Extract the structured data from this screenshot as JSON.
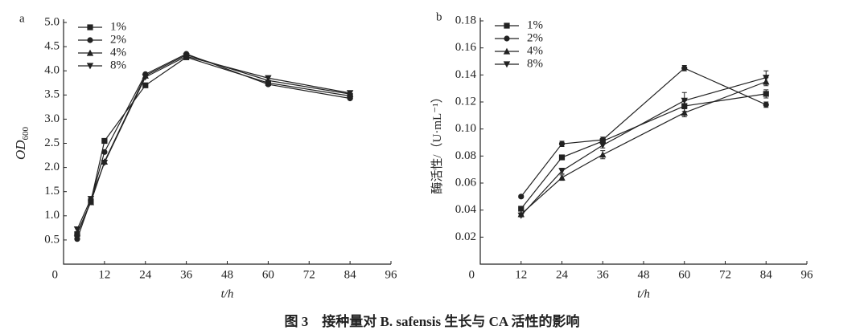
{
  "figure_caption": "图 3　接种量对 B. safensis 生长与 CA 活性的影响",
  "chart_data": [
    {
      "type": "line",
      "panel_label": "a",
      "xlabel": "t/h",
      "ylabel": "OD",
      "ylabel_subscript": "600",
      "x": [
        4,
        8,
        12,
        24,
        36,
        60,
        84
      ],
      "xlim": [
        0,
        96
      ],
      "xticks": [
        0,
        12,
        24,
        36,
        48,
        60,
        72,
        84,
        96
      ],
      "ylim": [
        0,
        5
      ],
      "yticks": [
        0,
        0.5,
        {
          "value": 1,
          "label": "1.0"
        },
        1.5,
        {
          "value": 2,
          "label": "2.0"
        },
        2.5,
        {
          "value": 3,
          "label": "3.0"
        },
        3.5,
        {
          "value": 4,
          "label": "4.0"
        },
        4.5,
        {
          "value": 5,
          "label": "5.0"
        }
      ],
      "series": [
        {
          "name": "1%",
          "color": "#222222",
          "marker": "square",
          "values": [
            0.62,
            1.3,
            2.55,
            3.7,
            4.28,
            3.75,
            3.48
          ]
        },
        {
          "name": "2%",
          "color": "#222222",
          "marker": "circle",
          "values": [
            0.52,
            1.32,
            2.32,
            3.93,
            4.35,
            3.72,
            3.43
          ]
        },
        {
          "name": "4%",
          "color": "#222222",
          "marker": "triangle-up",
          "values": [
            0.65,
            1.28,
            2.12,
            3.9,
            4.33,
            3.8,
            3.52
          ]
        },
        {
          "name": "8%",
          "color": "#222222",
          "marker": "triangle-down",
          "values": [
            0.72,
            1.35,
            2.1,
            3.87,
            4.3,
            3.85,
            3.54
          ]
        }
      ]
    },
    {
      "type": "line",
      "panel_label": "b",
      "xlabel": "t/h",
      "ylabel": "酶活性/（U·mL⁻¹）",
      "x": [
        12,
        24,
        36,
        60,
        84
      ],
      "xlim": [
        0,
        96
      ],
      "xticks": [
        0,
        12,
        24,
        36,
        48,
        60,
        72,
        84,
        96
      ],
      "ylim": [
        0,
        0.18
      ],
      "yticks": [
        0,
        0.02,
        0.04,
        0.06,
        0.08,
        {
          "value": 0.1,
          "label": "0.10"
        },
        0.12,
        0.14,
        0.16,
        0.18
      ],
      "series": [
        {
          "name": "1%",
          "color": "#222222",
          "marker": "square",
          "values": [
            0.041,
            0.079,
            0.091,
            0.117,
            0.126
          ],
          "errors": [
            0.001,
            0.001,
            0.002,
            0.004,
            0.003
          ]
        },
        {
          "name": "2%",
          "color": "#222222",
          "marker": "circle",
          "values": [
            0.05,
            0.089,
            0.092,
            0.145,
            0.118
          ],
          "errors": [
            0.001,
            0.002,
            0.002,
            0.002,
            0.002
          ]
        },
        {
          "name": "4%",
          "color": "#222222",
          "marker": "triangle-up",
          "values": [
            0.037,
            0.064,
            0.081,
            0.112,
            0.135
          ],
          "errors": [
            0.001,
            0.002,
            0.003,
            0.003,
            0.003
          ]
        },
        {
          "name": "8%",
          "color": "#222222",
          "marker": "triangle-down",
          "values": [
            0.036,
            0.069,
            0.088,
            0.121,
            0.138
          ],
          "errors": [
            0.001,
            0.002,
            0.002,
            0.006,
            0.005
          ]
        }
      ]
    }
  ]
}
